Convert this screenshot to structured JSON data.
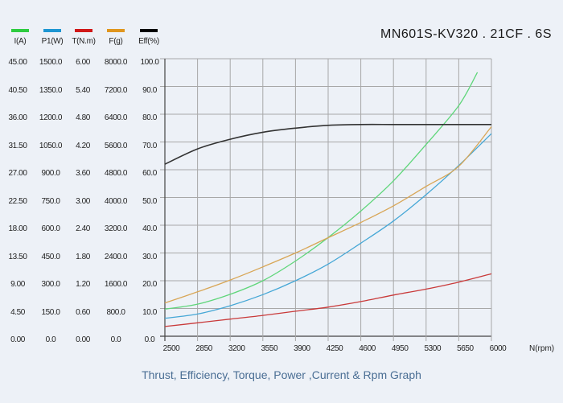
{
  "header": {
    "model": "MN601S-KV320 . 21CF . 6S"
  },
  "legend": [
    {
      "label": "I(A)",
      "color": "#2ecc40"
    },
    {
      "label": "P1(W)",
      "color": "#1e96d2"
    },
    {
      "label": "T(N.m)",
      "color": "#d01818"
    },
    {
      "label": "F(g)",
      "color": "#e0961e"
    },
    {
      "label": "Eff(%)",
      "color": "#000000"
    }
  ],
  "y_axes": [
    {
      "name": "I(A)",
      "ticks": [
        "45.00",
        "40.50",
        "36.00",
        "31.50",
        "27.00",
        "22.50",
        "18.00",
        "13.50",
        "9.00",
        "4.50",
        "0.00"
      ]
    },
    {
      "name": "P1(W)",
      "ticks": [
        "1500.0",
        "1350.0",
        "1200.0",
        "1050.0",
        "900.0",
        "750.0",
        "600.0",
        "450.0",
        "300.0",
        "150.0",
        "0.0"
      ]
    },
    {
      "name": "T(N.m)",
      "ticks": [
        "6.00",
        "5.40",
        "4.80",
        "4.20",
        "3.60",
        "3.00",
        "2.40",
        "1.80",
        "1.20",
        "0.60",
        "0.00"
      ]
    },
    {
      "name": "F(g)",
      "ticks": [
        "8000.0",
        "7200.0",
        "6400.0",
        "5600.0",
        "4800.0",
        "4000.0",
        "3200.0",
        "2400.0",
        "1600.0",
        "800.0",
        "0.0"
      ]
    },
    {
      "name": "Eff(%)",
      "ticks": [
        "100.0",
        "90.0",
        "80.0",
        "70.0",
        "60.0",
        "50.0",
        "40.0",
        "30.0",
        "20.0",
        "10.0",
        "0.0"
      ]
    }
  ],
  "caption": "Thrust, Efficiency, Torque, Power ,Current & Rpm Graph",
  "chart_data": {
    "type": "line",
    "title": "MN601S-KV320 . 21CF . 6S",
    "subtitle": "Thrust, Efficiency, Torque, Power ,Current & Rpm Graph",
    "xlabel": "N(rpm)",
    "x_ticks": [
      "2500",
      "2850",
      "3200",
      "3550",
      "3900",
      "4250",
      "4600",
      "4950",
      "5300",
      "5650",
      "6000"
    ],
    "xlim": [
      2500,
      6000
    ],
    "grid": true,
    "legend_position": "top-left",
    "series": [
      {
        "name": "I(A)",
        "color": "#5fd67a",
        "ylim": [
          0,
          45
        ],
        "x": [
          2500,
          2850,
          3200,
          3550,
          3900,
          4250,
          4600,
          4950,
          5300,
          5650,
          5850
        ],
        "values": [
          4.4,
          5.2,
          6.8,
          9.0,
          12.2,
          16.0,
          20.3,
          25.2,
          31.1,
          37.4,
          42.8
        ]
      },
      {
        "name": "P1(W)",
        "color": "#45a7d6",
        "ylim": [
          0,
          1500
        ],
        "x": [
          2500,
          2850,
          3200,
          3550,
          3900,
          4250,
          4600,
          4950,
          5300,
          5650,
          6000
        ],
        "values": [
          97,
          120,
          165,
          225,
          300,
          390,
          503,
          623,
          765,
          923,
          1095
        ]
      },
      {
        "name": "T(N.m)",
        "color": "#c93a3a",
        "ylim": [
          0,
          6
        ],
        "x": [
          2500,
          2850,
          3200,
          3550,
          3900,
          4250,
          4600,
          4950,
          5300,
          5650,
          6000
        ],
        "values": [
          0.21,
          0.29,
          0.37,
          0.45,
          0.54,
          0.63,
          0.75,
          0.89,
          1.02,
          1.17,
          1.35
        ]
      },
      {
        "name": "F(g)",
        "color": "#d8a656",
        "ylim": [
          0,
          8000
        ],
        "x": [
          2500,
          2850,
          3200,
          3550,
          3900,
          4250,
          4600,
          4950,
          5300,
          5650,
          6000
        ],
        "values": [
          960,
          1280,
          1620,
          2000,
          2400,
          2840,
          3280,
          3760,
          4320,
          4900,
          6040
        ]
      },
      {
        "name": "Eff(%)",
        "color": "#333333",
        "ylim": [
          0,
          100
        ],
        "x": [
          2500,
          2850,
          3200,
          3550,
          3900,
          4250,
          4600,
          4950,
          5300,
          5650,
          6000
        ],
        "values": [
          62.0,
          67.5,
          71.0,
          73.5,
          75.0,
          76.0,
          76.3,
          76.3,
          76.3,
          76.3,
          76.3
        ]
      }
    ]
  }
}
